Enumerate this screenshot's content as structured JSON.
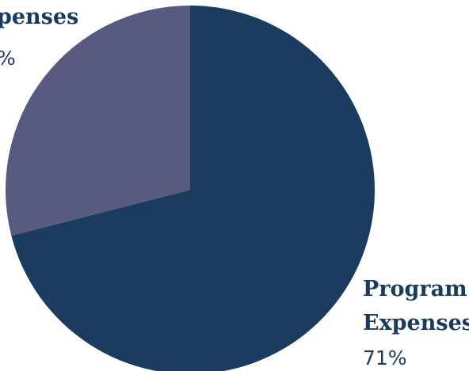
{
  "chart_data": {
    "type": "pie",
    "slices": [
      {
        "label": "Program Expenses",
        "label_lines": [
          "Program",
          "Expenses"
        ],
        "value": 71,
        "display": "71%",
        "color": "#1b3c5f"
      },
      {
        "label": "Expenses",
        "label_lines": [
          "penses"
        ],
        "value": 29,
        "display": "%",
        "color": "#585a82"
      }
    ],
    "start": "top",
    "direction": "clockwise"
  }
}
